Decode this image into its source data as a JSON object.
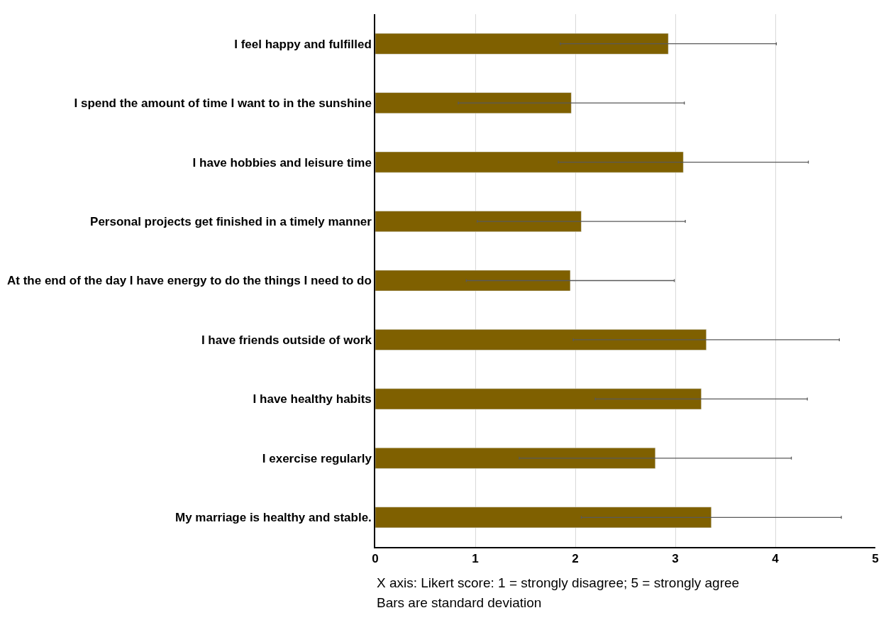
{
  "chart_data": {
    "type": "bar",
    "orientation": "horizontal",
    "categories": [
      "I feel happy and fulfilled",
      "I spend the amount of time I want to in the sunshine",
      "I have hobbies and leisure time",
      "Personal projects get finished in a timely manner",
      "At the end of the day I have energy to do the things I need to do",
      "I have friends outside of work",
      "I have healthy habits",
      "I exercise regularly",
      "My marriage is healthy and stable."
    ],
    "values": [
      2.93,
      1.96,
      3.08,
      2.06,
      1.95,
      3.31,
      3.26,
      2.8,
      3.36
    ],
    "errors": [
      1.08,
      1.13,
      1.25,
      1.04,
      1.04,
      1.33,
      1.06,
      1.36,
      1.3
    ],
    "color": "#7f6000",
    "xlim": [
      0,
      5
    ],
    "xticks": [
      0,
      1,
      2,
      3,
      4,
      5
    ],
    "grid": "x",
    "annotations": [
      "X axis: Likert score: 1 = strongly disagree; 5 = strongly agree",
      "Bars are standard deviation"
    ]
  }
}
